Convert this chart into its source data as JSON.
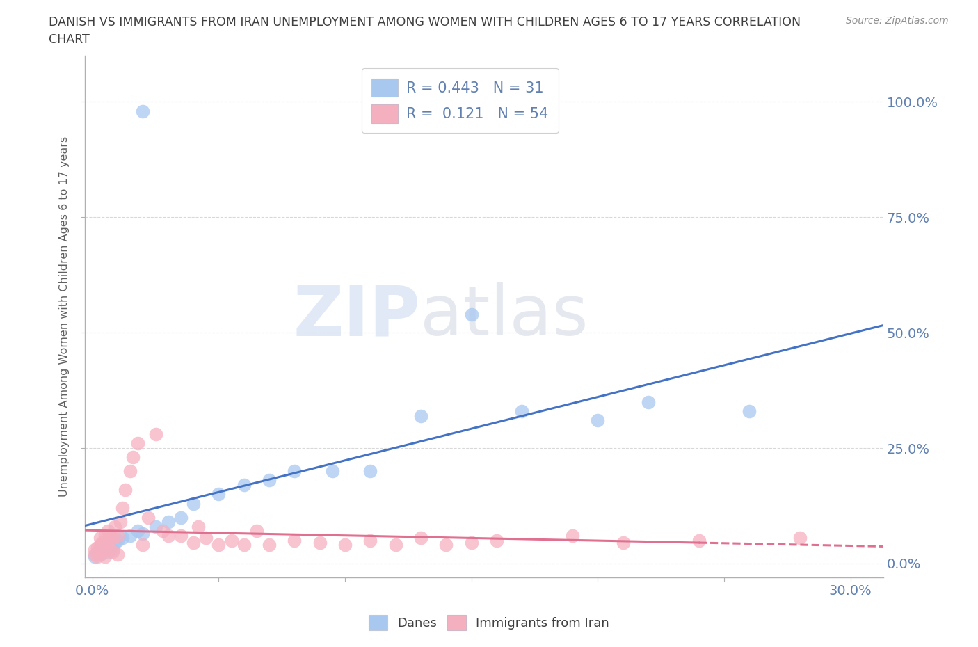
{
  "title_line1": "DANISH VS IMMIGRANTS FROM IRAN UNEMPLOYMENT AMONG WOMEN WITH CHILDREN AGES 6 TO 17 YEARS CORRELATION",
  "title_line2": "CHART",
  "source": "Source: ZipAtlas.com",
  "xlim": [
    -0.003,
    0.313
  ],
  "ylim": [
    -0.03,
    1.1
  ],
  "ylabel_ticks": [
    0.0,
    0.25,
    0.5,
    0.75,
    1.0
  ],
  "xlabel_show": [
    0.0,
    0.3
  ],
  "xtick_vals": [
    0.0,
    0.05,
    0.1,
    0.15,
    0.2,
    0.25,
    0.3
  ],
  "danes_color": "#a8c8f0",
  "iran_color": "#f5b0c0",
  "danes_trend_color": "#4472c4",
  "iran_trend_color": "#e07090",
  "danes_R": 0.443,
  "danes_N": 31,
  "iran_R": 0.121,
  "iran_N": 54,
  "watermark_zip": "ZIP",
  "watermark_atlas": "atlas",
  "legend_danes_label": "Danes",
  "legend_iran_label": "Immigrants from Iran",
  "ylabel": "Unemployment Among Women with Children Ages 6 to 17 years",
  "danes_x": [
    0.001,
    0.002,
    0.003,
    0.004,
    0.005,
    0.006,
    0.007,
    0.008,
    0.009,
    0.01,
    0.012,
    0.015,
    0.018,
    0.02,
    0.025,
    0.03,
    0.035,
    0.04,
    0.05,
    0.06,
    0.07,
    0.08,
    0.095,
    0.11,
    0.13,
    0.15,
    0.17,
    0.2,
    0.22,
    0.26,
    0.02
  ],
  "danes_y": [
    0.015,
    0.025,
    0.02,
    0.03,
    0.035,
    0.025,
    0.04,
    0.03,
    0.045,
    0.05,
    0.055,
    0.06,
    0.07,
    0.065,
    0.08,
    0.09,
    0.1,
    0.13,
    0.15,
    0.17,
    0.18,
    0.2,
    0.2,
    0.2,
    0.32,
    0.54,
    0.33,
    0.31,
    0.35,
    0.33,
    0.98
  ],
  "iran_x": [
    0.001,
    0.001,
    0.002,
    0.002,
    0.003,
    0.003,
    0.003,
    0.004,
    0.004,
    0.005,
    0.005,
    0.005,
    0.006,
    0.006,
    0.007,
    0.007,
    0.008,
    0.008,
    0.009,
    0.01,
    0.01,
    0.011,
    0.012,
    0.013,
    0.015,
    0.016,
    0.018,
    0.02,
    0.022,
    0.025,
    0.028,
    0.03,
    0.035,
    0.04,
    0.042,
    0.045,
    0.05,
    0.055,
    0.06,
    0.065,
    0.07,
    0.08,
    0.09,
    0.1,
    0.11,
    0.12,
    0.13,
    0.14,
    0.15,
    0.16,
    0.19,
    0.21,
    0.24,
    0.28
  ],
  "iran_y": [
    0.02,
    0.03,
    0.015,
    0.035,
    0.02,
    0.04,
    0.055,
    0.025,
    0.045,
    0.015,
    0.035,
    0.06,
    0.05,
    0.07,
    0.03,
    0.06,
    0.025,
    0.055,
    0.08,
    0.02,
    0.06,
    0.09,
    0.12,
    0.16,
    0.2,
    0.23,
    0.26,
    0.04,
    0.1,
    0.28,
    0.07,
    0.06,
    0.06,
    0.045,
    0.08,
    0.055,
    0.04,
    0.05,
    0.04,
    0.07,
    0.04,
    0.05,
    0.045,
    0.04,
    0.05,
    0.04,
    0.055,
    0.04,
    0.045,
    0.05,
    0.06,
    0.045,
    0.05,
    0.055
  ],
  "background_color": "#ffffff",
  "grid_color": "#d8d8d8",
  "title_color": "#404040",
  "axis_label_color": "#606060",
  "tick_label_color": "#6080b0"
}
